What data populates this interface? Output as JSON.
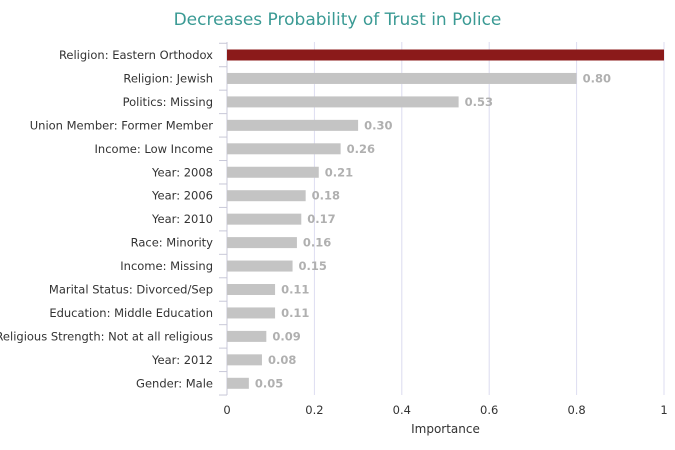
{
  "chart_data": {
    "type": "bar",
    "orientation": "horizontal",
    "title": "Decreases Probability of Trust in Police",
    "xlabel": "Importance",
    "ylabel": "",
    "xlim": [
      0,
      1
    ],
    "xticks": [
      "0",
      "0.2",
      "0.4",
      "0.6",
      "0.8",
      "1"
    ],
    "grid": true,
    "categories": [
      "Religion: Eastern Orthodox",
      "Religion: Jewish",
      "Politics: Missing",
      "Union Member: Former Member",
      "Income: Low Income",
      "Year: 2008",
      "Year: 2006",
      "Year: 2010",
      "Race: Minority",
      "Income: Missing",
      "Marital Status: Divorced/Sep",
      "Education: Middle Education",
      "Religious Strength: Not at all religious",
      "Year: 2012",
      "Gender: Male"
    ],
    "values": [
      1.0,
      0.8,
      0.53,
      0.3,
      0.26,
      0.21,
      0.18,
      0.17,
      0.16,
      0.15,
      0.11,
      0.11,
      0.09,
      0.08,
      0.05
    ],
    "value_labels": [
      "",
      "0.80",
      "0.53",
      "0.30",
      "0.26",
      "0.21",
      "0.18",
      "0.17",
      "0.16",
      "0.15",
      "0.11",
      "0.11",
      "0.09",
      "0.08",
      "0.05"
    ],
    "colors": {
      "highlight": "#8b1a1a",
      "bar": "#c4c4c4",
      "grid": "#dcdcf0",
      "title": "#3a9a94",
      "value_label": "#b0b0b0"
    }
  }
}
